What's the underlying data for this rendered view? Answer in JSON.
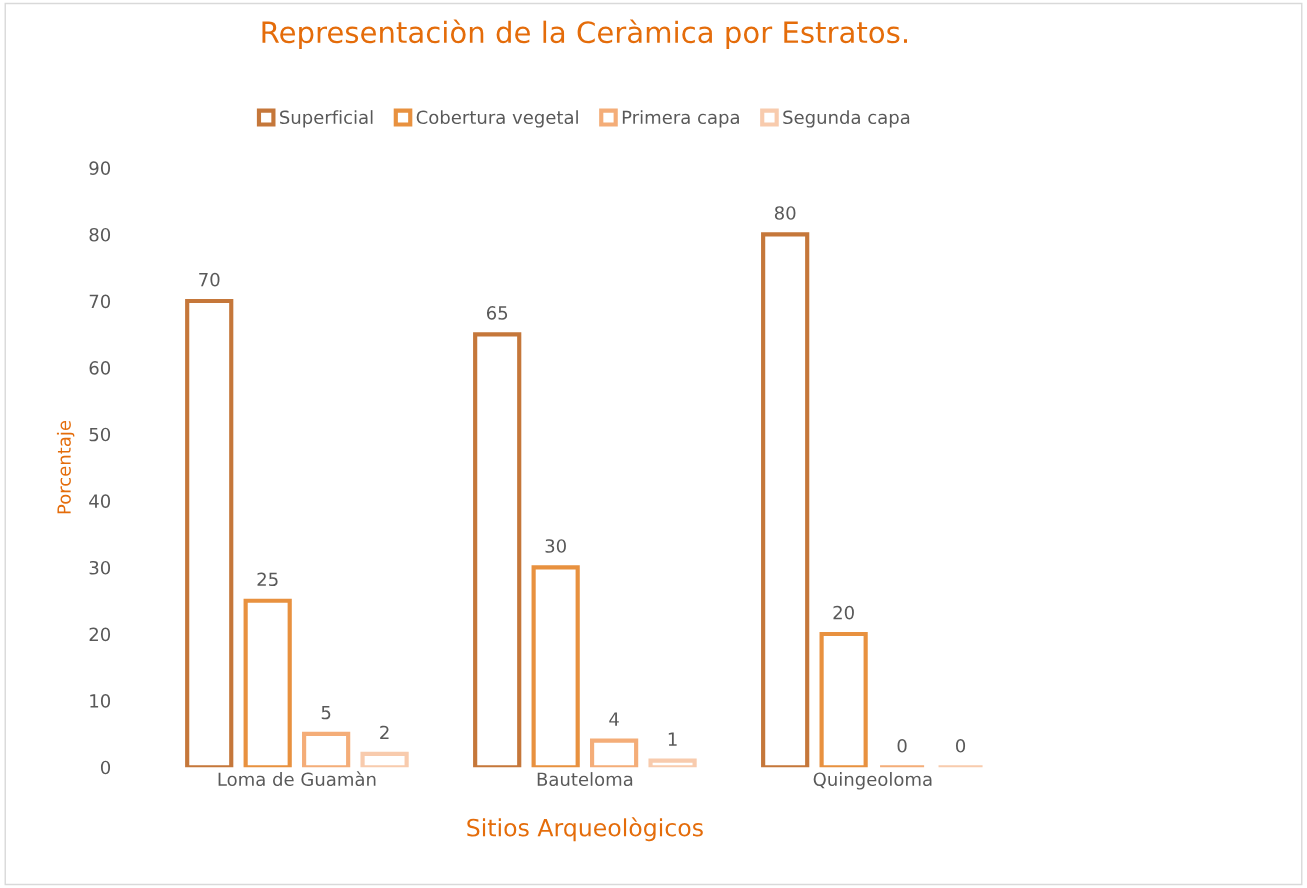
{
  "chart_data": {
    "type": "bar",
    "title": "Representaciòn de la Ceràmica por Estratos.",
    "xlabel": "Sitios Arqueològicos",
    "ylabel": "Porcentaje",
    "categories": [
      "Loma de Guamàn",
      "Bauteloma",
      "Quingeoloma"
    ],
    "series": [
      {
        "name": "Superficial",
        "color": "#c5773a",
        "values": [
          70,
          65,
          80
        ]
      },
      {
        "name": "Cobertura vegetal",
        "color": "#e8913f",
        "values": [
          25,
          30,
          20
        ]
      },
      {
        "name": "Primera capa",
        "color": "#f4ad78",
        "values": [
          5,
          4,
          0
        ]
      },
      {
        "name": "Segunda capa",
        "color": "#f8cbad",
        "values": [
          2,
          1,
          0
        ]
      }
    ],
    "ylim": [
      0,
      90
    ],
    "yticks": [
      0,
      10,
      20,
      30,
      40,
      50,
      60,
      70,
      80,
      90
    ],
    "grid": false,
    "legend": "top",
    "data_labels": true
  }
}
